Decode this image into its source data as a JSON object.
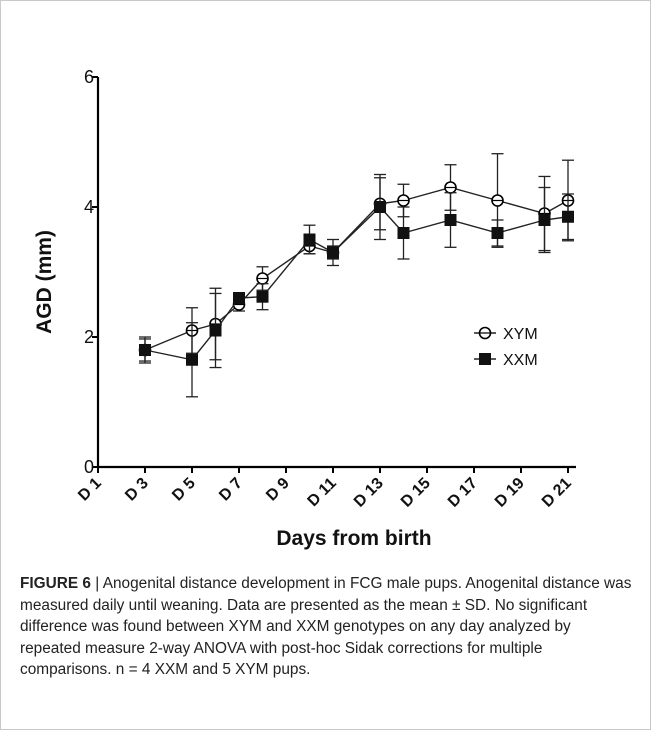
{
  "chart_data": {
    "type": "line",
    "xlabel": "Days from birth",
    "ylabel": "AGD (mm)",
    "ylim": [
      0,
      6
    ],
    "yticks": [
      "0",
      "2",
      "4",
      "6"
    ],
    "xlim": [
      1,
      21
    ],
    "xticks": [
      {
        "value": 1,
        "label": "D 1"
      },
      {
        "value": 3,
        "label": "D 3"
      },
      {
        "value": 5,
        "label": "D 5"
      },
      {
        "value": 7,
        "label": "D 7"
      },
      {
        "value": 9,
        "label": "D 9"
      },
      {
        "value": 11,
        "label": "D 11"
      },
      {
        "value": 13,
        "label": "D 13"
      },
      {
        "value": 15,
        "label": "D 15"
      },
      {
        "value": 17,
        "label": "D 17"
      },
      {
        "value": 19,
        "label": "D 19"
      },
      {
        "value": 21,
        "label": "D 21"
      }
    ],
    "legend_position": "right",
    "series": [
      {
        "name": "XYM",
        "marker": "open-circle",
        "points": [
          {
            "x": 3,
            "y": 1.8,
            "sd": 0.2
          },
          {
            "x": 5,
            "y": 2.1,
            "sd": 0.35
          },
          {
            "x": 6,
            "y": 2.2,
            "sd": 0.55
          },
          {
            "x": 7,
            "y": 2.5,
            "sd": 0.1
          },
          {
            "x": 8,
            "y": 2.9,
            "sd": 0.18
          },
          {
            "x": 10,
            "y": 3.4,
            "sd": 0.12
          },
          {
            "x": 11,
            "y": 3.3,
            "sd": 0.1
          },
          {
            "x": 13,
            "y": 4.05,
            "sd": 0.4
          },
          {
            "x": 14,
            "y": 4.1,
            "sd": 0.25
          },
          {
            "x": 16,
            "y": 4.3,
            "sd": 0.35
          },
          {
            "x": 18,
            "y": 4.1,
            "sd": 0.72
          },
          {
            "x": 20,
            "y": 3.9,
            "sd": 0.57
          },
          {
            "x": 21,
            "y": 4.1,
            "sd": 0.62
          }
        ]
      },
      {
        "name": "XXM",
        "marker": "filled-square",
        "points": [
          {
            "x": 3,
            "y": 1.8,
            "sd": 0.17
          },
          {
            "x": 5,
            "y": 1.65,
            "sd": 0.57
          },
          {
            "x": 6,
            "y": 2.1,
            "sd": 0.57
          },
          {
            "x": 7,
            "y": 2.6,
            "sd": 0.06
          },
          {
            "x": 8,
            "y": 2.62,
            "sd": 0.2
          },
          {
            "x": 10,
            "y": 3.5,
            "sd": 0.22
          },
          {
            "x": 11,
            "y": 3.3,
            "sd": 0.2
          },
          {
            "x": 13,
            "y": 4.0,
            "sd": 0.5
          },
          {
            "x": 14,
            "y": 3.6,
            "sd": 0.4
          },
          {
            "x": 16,
            "y": 3.8,
            "sd": 0.42
          },
          {
            "x": 18,
            "y": 3.6,
            "sd": 0.2
          },
          {
            "x": 20,
            "y": 3.8,
            "sd": 0.5
          },
          {
            "x": 21,
            "y": 3.85,
            "sd": 0.35
          }
        ]
      }
    ]
  },
  "caption": {
    "label": "FIGURE 6",
    "separator": " | ",
    "text": "Anogenital distance development in FCG male pups. Anogenital distance was measured daily until weaning. Data are presented as the mean ± SD. No significant difference was found between XYM and XXM genotypes on any day analyzed by repeated measure 2-way ANOVA with post-hoc Sidak corrections for multiple comparisons. n = 4 XXM and 5 XYM pups."
  }
}
